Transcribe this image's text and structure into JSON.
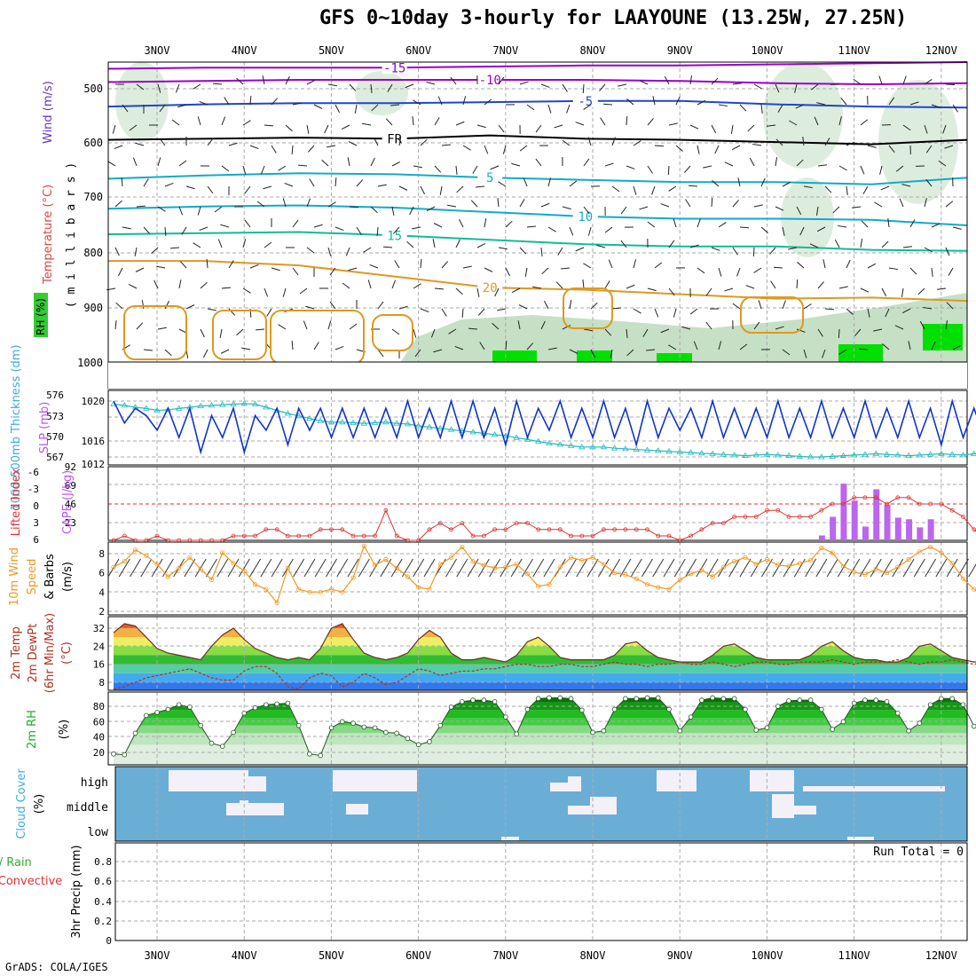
{
  "title": "GFS 0~10day 3-hourly for LAAYOUNE (13.25W, 27.25N)",
  "footer": "GrADS: COLA/IGES",
  "colors": {
    "temp_contour_cold": "#9900cc",
    "temp_contour_blue": "#2244cc",
    "temp_contour_cyan": "#11aacc",
    "temp_contour_green": "#11bb99",
    "temp_contour_orange": "#dd9922",
    "rh_shading": "#cfe6cf",
    "rh_bright": "#00e000",
    "slp_line": "#1133cc",
    "thickness_line": "#22bbbb",
    "lifted_index_line": "#dd3333",
    "cape_bars": "#bb66ee",
    "wind_speed_line": "#ee9922",
    "cloud_bg": "#6aaed6",
    "cloud_fill": "#f4f0f8"
  },
  "chart_data": [
    {
      "panel": "upper-air",
      "type": "contour",
      "ylabel_parts": [
        "RH (%)",
        "Temperature (°C)",
        "Wind (m/s)"
      ],
      "ylabel2": "( m i l l i b a r s )",
      "x_dates": [
        "3NOV",
        "4NOV",
        "5NOV",
        "6NOV",
        "7NOV",
        "8NOV",
        "9NOV",
        "10NOV",
        "11NOV",
        "12NOV"
      ],
      "y_ticks": [
        500,
        600,
        700,
        800,
        900,
        1000
      ],
      "pressure_range": [
        460,
        1000
      ],
      "contours": [
        {
          "label": "-15",
          "color": "#9900cc",
          "levels": [
            472,
            470,
            470,
            470,
            468,
            466,
            466,
            464,
            462,
            460
          ]
        },
        {
          "label": "-10",
          "color": "#9900cc",
          "levels": [
            496,
            494,
            492,
            492,
            492,
            492,
            494,
            498,
            500,
            498
          ]
        },
        {
          "label": "-5",
          "color": "#2244cc",
          "levels": [
            540,
            536,
            534,
            534,
            532,
            530,
            530,
            536,
            540,
            542
          ]
        },
        {
          "label": "FR",
          "color": "#000000",
          "levels": [
            600,
            598,
            596,
            598,
            592,
            598,
            600,
            604,
            608,
            600
          ]
        },
        {
          "label": "5",
          "color": "#11aacc",
          "levels": [
            670,
            664,
            660,
            662,
            668,
            672,
            676,
            676,
            680,
            668
          ]
        },
        {
          "label": "10",
          "color": "#11aacc",
          "levels": [
            724,
            720,
            718,
            722,
            730,
            738,
            742,
            742,
            744,
            754
          ]
        },
        {
          "label": "15",
          "color": "#11bb99",
          "levels": [
            770,
            768,
            766,
            772,
            780,
            788,
            792,
            792,
            798,
            800
          ]
        },
        {
          "label": "20",
          "color": "#dd9922",
          "levels": [
            818,
            818,
            826,
            846,
            866,
            870,
            878,
            886,
            884,
            890
          ]
        }
      ]
    },
    {
      "panel": "slp-thickness",
      "type": "line",
      "ylabel_left": "1000-500mb Thickness (dm)",
      "ylabel_right": "SLP (mb)",
      "left_ticks": [
        576,
        573,
        570,
        567
      ],
      "right_ticks": [
        1020,
        1016,
        1012
      ],
      "series": [
        {
          "name": "SLP",
          "values": [
            1021,
            1018,
            1020,
            1019,
            1017,
            1020,
            1016,
            1020,
            1014,
            1019,
            1016,
            1020,
            1014,
            1019,
            1017,
            1020,
            1015,
            1020,
            1017,
            1020,
            1016,
            1020,
            1016,
            1020,
            1016,
            1020,
            1016,
            1021,
            1016,
            1020,
            1016,
            1021,
            1016,
            1021,
            1016,
            1020,
            1015,
            1021,
            1016,
            1020,
            1017,
            1021,
            1016,
            1020,
            1016,
            1021,
            1016,
            1020,
            1015,
            1021,
            1016,
            1020,
            1017,
            1020,
            1016,
            1021,
            1016,
            1020,
            1016,
            1020,
            1016,
            1021,
            1016,
            1020,
            1016,
            1021,
            1016,
            1020,
            1016,
            1021,
            1016,
            1020,
            1016,
            1021,
            1016,
            1020,
            1015,
            1021,
            1016,
            1020,
            1016
          ]
        },
        {
          "name": "Thickness",
          "values": [
            575.5,
            575.3,
            575.0,
            574.8,
            574.5,
            574.6,
            574.8,
            575.0,
            575.2,
            575.3,
            575.4,
            575.5,
            575.6,
            575.5,
            575.0,
            574.5,
            574.0,
            573.6,
            573.2,
            572.8,
            572.6,
            572.6,
            572.5,
            572.4,
            572.5,
            572.6,
            572.4,
            572.3,
            572.0,
            571.8,
            571.6,
            571.4,
            571.2,
            571.0,
            570.8,
            570.6,
            570.4,
            570.1,
            569.8,
            569.5,
            569.2,
            569.0,
            568.8,
            568.6,
            568.6,
            568.6,
            568.4,
            568.3,
            568.2,
            568.1,
            568.0,
            567.9,
            567.8,
            567.7,
            567.6,
            567.5,
            567.4,
            567.3,
            567.2,
            567.3,
            567.4,
            567.3,
            567.2,
            567.1,
            567.0,
            567.0,
            567.1,
            567.2,
            567.3,
            567.4,
            567.5,
            567.4,
            567.3,
            567.2,
            567.3,
            567.4,
            567.5,
            567.4,
            567.3,
            567.5,
            567.6
          ]
        }
      ]
    },
    {
      "panel": "cape-lifted",
      "type": "bar",
      "ylabel_left": "Lifted Index",
      "ylabel_right": "CAPE (J/kg)",
      "left_ticks": [
        "-6",
        "-3",
        "0",
        "3",
        "6"
      ],
      "right_ticks": [
        "92",
        "69",
        "46",
        "23"
      ],
      "lifted_index": [
        7,
        5,
        7,
        6,
        5,
        7,
        6,
        6,
        7,
        6,
        6,
        5,
        5,
        5,
        4,
        4,
        5,
        5,
        5,
        4,
        4,
        4,
        5,
        5,
        5,
        1,
        5,
        8,
        8,
        4,
        3,
        4,
        3,
        5,
        5,
        4,
        4,
        3,
        3,
        4,
        4,
        4,
        5,
        5,
        5,
        4,
        4,
        4,
        4,
        4,
        5,
        5,
        6,
        5,
        4,
        3,
        3,
        2,
        2,
        2,
        1,
        1,
        2,
        2,
        2,
        1,
        0,
        0,
        -1,
        -1,
        -1,
        0,
        -1,
        -1,
        0,
        0,
        0,
        1,
        2,
        4,
        6
      ],
      "cape_values": [
        6,
        29,
        70,
        49,
        17,
        63,
        44,
        28,
        26,
        16,
        26
      ],
      "cape_indices": [
        65,
        66,
        67,
        68,
        69,
        70,
        71,
        72,
        73,
        74,
        75
      ]
    },
    {
      "panel": "wind10m",
      "type": "line",
      "ylabel_left": "10m Wind",
      "ylabel_mid": "Speed & Barbs",
      "ylabel_units": "(m/s)",
      "y_ticks": [
        2,
        4,
        6,
        8
      ],
      "values": [
        6.6,
        7.2,
        8.4,
        7.8,
        6.9,
        5.6,
        6.5,
        7.6,
        6.4,
        5.3,
        8.1,
        7.0,
        6.2,
        4.8,
        4.3,
        2.9,
        6.5,
        4.3,
        4.0,
        4.0,
        4.3,
        4.0,
        5.5,
        8.8,
        6.8,
        7.4,
        6.5,
        5.6,
        4.5,
        4.3,
        6.9,
        7.6,
        8.7,
        7.2,
        6.8,
        6.5,
        6.6,
        6.9,
        5.9,
        4.6,
        4.8,
        6.6,
        7.6,
        7.3,
        7.6,
        6.9,
        6.0,
        5.8,
        5.4,
        4.8,
        4.5,
        4.3,
        5.3,
        5.9,
        6.3,
        5.6,
        6.6,
        7.2,
        7.6,
        6.9,
        7.4,
        6.8,
        6.7,
        7.0,
        7.3,
        8.6,
        8.1,
        6.7,
        6.1,
        5.8,
        6.4,
        6.0,
        6.6,
        7.4,
        8.2,
        8.7,
        8.1,
        7.0,
        5.4,
        4.3,
        3.4
      ],
      "legend": [
        "10m Wind",
        "Speed",
        "& Barbs"
      ]
    },
    {
      "panel": "temp2m",
      "type": "area",
      "ylabel": [
        "2m Temp",
        "2m DewPt",
        "(6hr Min/Max)",
        "(°C)"
      ],
      "y_ticks": [
        8,
        16,
        24,
        32
      ],
      "temp": [
        30,
        34,
        33,
        28,
        23,
        21,
        20,
        19,
        18,
        24,
        29,
        32,
        27,
        23,
        21,
        19,
        18,
        19,
        18,
        23,
        32,
        34,
        27,
        21,
        19,
        18,
        19,
        21,
        27,
        31,
        28,
        21,
        18,
        18,
        19,
        18,
        17,
        20,
        26,
        28,
        24,
        19,
        18,
        18,
        18,
        18,
        20,
        25,
        26,
        22,
        19,
        18,
        17,
        17,
        17,
        20,
        24,
        25,
        22,
        19,
        18,
        18,
        18,
        18,
        20,
        24,
        26,
        22,
        19,
        18,
        18,
        17,
        17,
        19,
        24,
        25,
        22,
        19,
        18,
        17,
        17
      ],
      "dewpt": [
        5,
        6,
        8,
        10,
        11,
        12,
        13,
        14,
        12,
        10,
        9,
        9,
        13,
        15,
        15,
        12,
        6,
        5,
        10,
        12,
        11,
        6,
        8,
        12,
        10,
        7,
        8,
        11,
        14,
        13,
        11,
        12,
        13,
        13,
        14,
        14,
        15,
        16,
        16,
        15,
        15,
        16,
        16,
        15,
        15,
        16,
        17,
        16,
        16,
        15,
        16,
        16,
        17,
        16,
        16,
        17,
        16,
        15,
        16,
        17,
        17,
        16,
        16,
        17,
        17,
        17,
        18,
        17,
        16,
        17,
        17,
        17,
        18,
        17,
        16,
        17,
        17,
        18,
        17,
        16,
        17
      ]
    },
    {
      "panel": "rh2m",
      "type": "area",
      "ylabel": [
        "2m RH",
        "(%)"
      ],
      "y_ticks": [
        20,
        40,
        60,
        80
      ],
      "values": [
        18,
        17,
        45,
        68,
        72,
        76,
        82,
        79,
        55,
        32,
        28,
        46,
        71,
        78,
        82,
        83,
        84,
        55,
        18,
        16,
        52,
        60,
        58,
        53,
        52,
        46,
        45,
        38,
        30,
        34,
        55,
        79,
        86,
        88,
        88,
        86,
        66,
        44,
        76,
        90,
        91,
        91,
        90,
        75,
        46,
        48,
        76,
        90,
        90,
        91,
        91,
        76,
        48,
        66,
        88,
        91,
        90,
        90,
        76,
        49,
        52,
        80,
        87,
        88,
        88,
        76,
        50,
        60,
        84,
        88,
        88,
        86,
        71,
        48,
        58,
        82,
        90,
        90,
        82,
        54,
        53
      ]
    },
    {
      "panel": "cloud",
      "type": "heatmap",
      "ylabel": [
        "Cloud Cover",
        "(%)"
      ],
      "rows": [
        "high",
        "middle",
        "low"
      ]
    },
    {
      "panel": "precip",
      "type": "bar",
      "ylabel": [
        "Total / Rain",
        "Convective",
        "3hr Precip (mm)"
      ],
      "y_ticks": [
        "0",
        "0.2",
        "0.4",
        "0.6",
        "0.8"
      ],
      "run_total": "Run Total = 0",
      "values": []
    }
  ]
}
